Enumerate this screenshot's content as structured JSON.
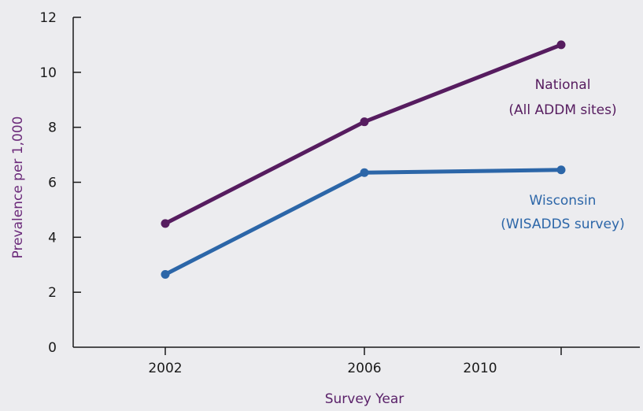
{
  "chart_data": {
    "type": "line",
    "title": "",
    "xlabel": "Survey Year",
    "ylabel": "Prevalence per 1,000",
    "ylim": [
      0,
      12
    ],
    "y_ticks": [
      "0",
      "2",
      "4",
      "6",
      "8",
      "10",
      "12"
    ],
    "x_ticks": [
      "2002",
      "2006",
      "2010"
    ],
    "x": [
      2002,
      2006,
      2010
    ],
    "grid": false,
    "legend": "inline labels at line ends",
    "series": [
      {
        "name": "National",
        "name_line2": "(All ADDM sites)",
        "values": [
          4.5,
          8.2,
          11.0
        ],
        "color": "#561c5f"
      },
      {
        "name": "Wisconsin",
        "name_line2": "(WISADDS survey)",
        "values": [
          2.65,
          6.35,
          6.45
        ],
        "color": "#2c66a8"
      }
    ],
    "colors": {
      "axis": "#1a1a1a",
      "xlabel": "#5a2169",
      "ylabel": "#6b2a7a",
      "background": "#ececef"
    }
  }
}
